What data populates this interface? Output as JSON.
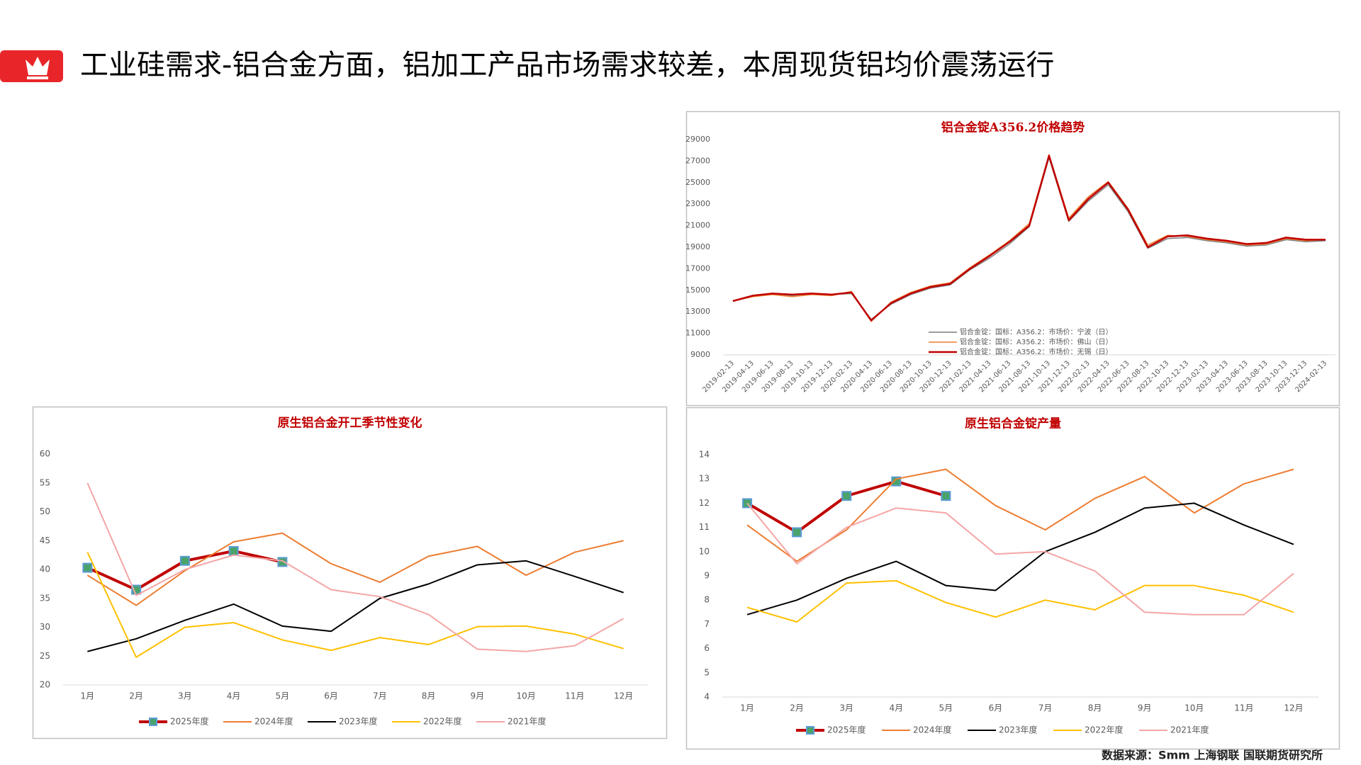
{
  "header": {
    "title": "工业硅需求-铝合金方面，铝加工产品市场需求较差，本周现货铝均价震荡运行"
  },
  "source": "数据来源：Smm 上海钢联 国联期货研究所",
  "chart_data": [
    {
      "type": "line",
      "title": "铝合金锭A356.2价格趋势",
      "categories": [
        "2019-02-13",
        "2019-04-13",
        "2019-06-13",
        "2019-08-13",
        "2019-10-13",
        "2019-12-13",
        "2020-02-13",
        "2020-04-13",
        "2020-06-13",
        "2020-08-13",
        "2020-10-13",
        "2020-12-13",
        "2021-02-13",
        "2021-04-13",
        "2021-06-13",
        "2021-08-13",
        "2021-10-13",
        "2021-12-13",
        "2022-02-13",
        "2022-04-13",
        "2022-06-13",
        "2022-08-13",
        "2022-10-13",
        "2022-12-13",
        "2023-02-13",
        "2023-04-13",
        "2023-06-13",
        "2023-08-13",
        "2023-10-13",
        "2023-12-13",
        "2024-02-13"
      ],
      "ylim": [
        9000,
        29000
      ],
      "yticks": [
        9000,
        11000,
        13000,
        15000,
        17000,
        19000,
        21000,
        23000,
        25000,
        27000,
        29000
      ],
      "legend": "inside-bottom-left",
      "series": [
        {
          "name": "铝合金锭：国标：A356.2：市场价：宁波（日）",
          "color": "#7f7f7f",
          "width": 1.5,
          "values": [
            14000,
            14500,
            14700,
            14500,
            14700,
            14600,
            14700,
            12300,
            13700,
            14600,
            15200,
            15500,
            16900,
            18000,
            19300,
            20900,
            27300,
            21400,
            23300,
            24800,
            22300,
            18900,
            19800,
            19900,
            19600,
            19400,
            19100,
            19200,
            19700,
            19500,
            19600
          ]
        },
        {
          "name": "铝合金锭：国标：A356.2：市场价：佛山（日）",
          "color": "#ed7d31",
          "width": 1.5,
          "values": [
            14000,
            14400,
            14600,
            14400,
            14600,
            14500,
            14900,
            12100,
            13900,
            14800,
            15400,
            15700,
            17100,
            18300,
            19600,
            21200,
            27600,
            21700,
            23700,
            25100,
            22600,
            19200,
            20100,
            20000,
            19700,
            19500,
            19200,
            19300,
            19800,
            19600,
            19700
          ]
        },
        {
          "name": "铝合金锭：国标：A356.2：市场价：无锡（日）",
          "color": "#c00000",
          "width": 2.5,
          "values": [
            14000,
            14500,
            14700,
            14600,
            14700,
            14600,
            14800,
            12200,
            13800,
            14700,
            15300,
            15600,
            17000,
            18200,
            19500,
            21000,
            27500,
            21500,
            23500,
            25000,
            22500,
            19000,
            20000,
            20100,
            19800,
            19600,
            19300,
            19400,
            19900,
            19700,
            19700
          ]
        }
      ]
    },
    {
      "type": "line",
      "title": "原生铝合金开工季节性变化",
      "categories": [
        "1月",
        "2月",
        "3月",
        "4月",
        "5月",
        "6月",
        "7月",
        "8月",
        "9月",
        "10月",
        "11月",
        "12月"
      ],
      "ylim": [
        20,
        60
      ],
      "yticks": [
        20,
        25,
        30,
        35,
        40,
        45,
        50,
        55,
        60
      ],
      "legend": "bottom",
      "series": [
        {
          "name": "2025年度",
          "color": "#c00000",
          "width": 4,
          "marker": "square",
          "values": [
            40.3,
            36.5,
            41.5,
            43.2,
            41.3,
            null,
            null,
            null,
            null,
            null,
            null,
            null
          ]
        },
        {
          "name": "2024年度",
          "color": "#ed7d31",
          "width": 2,
          "values": [
            39,
            33.8,
            39.8,
            44.8,
            46.3,
            41,
            37.8,
            42.3,
            44,
            39,
            43,
            45
          ]
        },
        {
          "name": "2023年度",
          "color": "#000000",
          "width": 2,
          "values": [
            25.8,
            28,
            31.2,
            34,
            30.2,
            29.3,
            35,
            37.5,
            40.8,
            41.5,
            38.8,
            36
          ]
        },
        {
          "name": "2022年度",
          "color": "#ffc000",
          "width": 2,
          "values": [
            43,
            24.8,
            30,
            30.8,
            27.8,
            26,
            28.2,
            27,
            30.1,
            30.2,
            28.8,
            26.3
          ]
        },
        {
          "name": "2021年度",
          "color": "#f4a6a6",
          "width": 2,
          "values": [
            55,
            35.5,
            40,
            42.5,
            41.5,
            36.5,
            35.3,
            32.2,
            26.2,
            25.8,
            26.8,
            31.5
          ]
        }
      ]
    },
    {
      "type": "line",
      "title": "原生铝合金锭产量",
      "categories": [
        "1月",
        "2月",
        "3月",
        "4月",
        "5月",
        "6月",
        "7月",
        "8月",
        "9月",
        "10月",
        "11月",
        "12月"
      ],
      "ylim": [
        4,
        14
      ],
      "yticks": [
        4,
        5,
        6,
        7,
        8,
        9,
        10,
        11,
        12,
        13,
        14
      ],
      "legend": "bottom",
      "series": [
        {
          "name": "2025年度",
          "color": "#c00000",
          "width": 4,
          "marker": "square",
          "values": [
            12,
            10.8,
            12.3,
            12.9,
            12.3,
            null,
            null,
            null,
            null,
            null,
            null,
            null
          ]
        },
        {
          "name": "2024年度",
          "color": "#ed7d31",
          "width": 2,
          "values": [
            11.1,
            9.6,
            10.9,
            13,
            13.4,
            11.9,
            10.9,
            12.2,
            13.1,
            11.6,
            12.8,
            13.4
          ]
        },
        {
          "name": "2023年度",
          "color": "#000000",
          "width": 2,
          "values": [
            7.4,
            8,
            8.9,
            9.6,
            8.6,
            8.4,
            10,
            10.8,
            11.8,
            12,
            11.1,
            10.3
          ]
        },
        {
          "name": "2022年度",
          "color": "#ffc000",
          "width": 2,
          "values": [
            7.7,
            7.1,
            8.7,
            8.8,
            7.9,
            7.3,
            8,
            7.6,
            8.6,
            8.6,
            8.2,
            7.5
          ]
        },
        {
          "name": "2021年度",
          "color": "#f4a6a6",
          "width": 2,
          "values": [
            12,
            9.5,
            11,
            11.8,
            11.6,
            9.9,
            10,
            9.2,
            7.5,
            7.4,
            7.4,
            9.1
          ]
        }
      ]
    }
  ]
}
